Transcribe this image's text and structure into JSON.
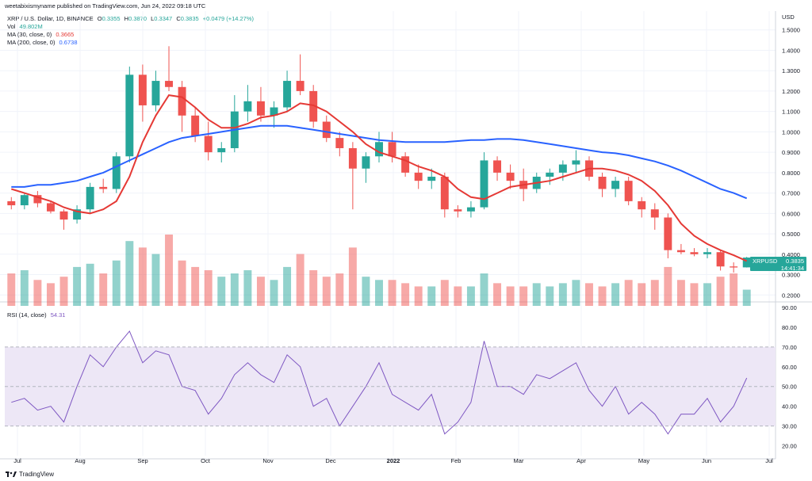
{
  "header": {
    "publisher": "weetabixismyname published on TradingView.com, Jun 24, 2022 09:18 UTC"
  },
  "legend": {
    "symbol": "XRP / U.S. Dollar, 1D, BINANCE",
    "ohlc": {
      "o_label": "O",
      "o": "0.3355",
      "h_label": "H",
      "h": "0.3870",
      "l_label": "L",
      "l": "0.3347",
      "c_label": "C",
      "c": "0.3835",
      "change": "+0.0479 (+14.27%)"
    },
    "vol_label": "Vol",
    "vol_value": "49.802M",
    "ma30_label": "MA (30, close, 0)",
    "ma30_value": "0.3665",
    "ma200_label": "MA (200, close, 0)",
    "ma200_value": "0.6738",
    "rsi_label": "RSI (14, close)",
    "rsi_value": "54.31"
  },
  "price_badge": {
    "symbol": "XRPUSD",
    "value": "0.3835",
    "countdown": "14:41:34"
  },
  "branding": {
    "name": "TradingView"
  },
  "colors": {
    "up": "#26a69a",
    "down": "#ef5350",
    "ma30": "#e53935",
    "ma200": "#2962ff",
    "rsi_line": "#7e57c2",
    "rsi_band": "#ede7f6",
    "background": "#ffffff",
    "grid": "#f0f3fa"
  },
  "chart_data": {
    "type": "candlestick",
    "currency_label": "USD",
    "x_axis": {
      "labels": [
        "Jul",
        "Aug",
        "Sep",
        "Oct",
        "Nov",
        "Dec",
        "2022",
        "Feb",
        "Mar",
        "Apr",
        "May",
        "Jun",
        "Jul"
      ]
    },
    "y_axis": {
      "ticks": [
        "1.5000",
        "1.4000",
        "1.3000",
        "1.2000",
        "1.1000",
        "1.0000",
        "0.9000",
        "0.8000",
        "0.7000",
        "0.6000",
        "0.5000",
        "0.4000",
        "0.3000",
        "0.2000"
      ],
      "range": [
        0.17,
        1.53
      ]
    },
    "rsi_axis": {
      "ticks": [
        "90.00",
        "80.00",
        "70.00",
        "60.00",
        "50.00",
        "40.00",
        "30.00",
        "20.00"
      ],
      "range": [
        15,
        92
      ],
      "bands": [
        30,
        70
      ],
      "midline": 50
    },
    "ohlc_approx_weekly": [
      [
        0.66,
        0.68,
        0.62,
        0.64
      ],
      [
        0.64,
        0.7,
        0.62,
        0.69
      ],
      [
        0.69,
        0.71,
        0.63,
        0.65
      ],
      [
        0.65,
        0.66,
        0.6,
        0.61
      ],
      [
        0.61,
        0.62,
        0.52,
        0.57
      ],
      [
        0.57,
        0.64,
        0.55,
        0.62
      ],
      [
        0.62,
        0.75,
        0.6,
        0.73
      ],
      [
        0.73,
        0.77,
        0.7,
        0.72
      ],
      [
        0.72,
        0.9,
        0.7,
        0.88
      ],
      [
        0.88,
        1.32,
        0.85,
        1.28
      ],
      [
        1.28,
        1.33,
        1.05,
        1.13
      ],
      [
        1.13,
        1.3,
        1.1,
        1.25
      ],
      [
        1.25,
        1.42,
        1.2,
        1.22
      ],
      [
        1.22,
        1.25,
        1.0,
        1.08
      ],
      [
        1.08,
        1.12,
        0.95,
        0.98
      ],
      [
        0.98,
        1.05,
        0.86,
        0.9
      ],
      [
        0.9,
        0.95,
        0.85,
        0.92
      ],
      [
        0.92,
        1.18,
        0.9,
        1.1
      ],
      [
        1.1,
        1.23,
        1.05,
        1.15
      ],
      [
        1.15,
        1.22,
        1.05,
        1.08
      ],
      [
        1.08,
        1.15,
        1.02,
        1.12
      ],
      [
        1.12,
        1.3,
        1.1,
        1.25
      ],
      [
        1.25,
        1.38,
        1.18,
        1.2
      ],
      [
        1.2,
        1.23,
        1.02,
        1.05
      ],
      [
        1.05,
        1.08,
        0.95,
        0.97
      ],
      [
        0.97,
        1.0,
        0.88,
        0.92
      ],
      [
        0.92,
        0.95,
        0.62,
        0.82
      ],
      [
        0.82,
        0.9,
        0.75,
        0.88
      ],
      [
        0.88,
        1.0,
        0.85,
        0.95
      ],
      [
        0.95,
        1.0,
        0.85,
        0.88
      ],
      [
        0.88,
        0.9,
        0.78,
        0.8
      ],
      [
        0.8,
        0.84,
        0.72,
        0.76
      ],
      [
        0.76,
        0.82,
        0.72,
        0.78
      ],
      [
        0.78,
        0.8,
        0.58,
        0.62
      ],
      [
        0.62,
        0.64,
        0.58,
        0.61
      ],
      [
        0.61,
        0.66,
        0.58,
        0.63
      ],
      [
        0.63,
        0.9,
        0.62,
        0.86
      ],
      [
        0.86,
        0.88,
        0.76,
        0.8
      ],
      [
        0.8,
        0.84,
        0.72,
        0.76
      ],
      [
        0.76,
        0.82,
        0.66,
        0.72
      ],
      [
        0.72,
        0.8,
        0.7,
        0.78
      ],
      [
        0.78,
        0.82,
        0.74,
        0.8
      ],
      [
        0.8,
        0.86,
        0.76,
        0.84
      ],
      [
        0.84,
        0.91,
        0.8,
        0.86
      ],
      [
        0.86,
        0.88,
        0.76,
        0.78
      ],
      [
        0.78,
        0.8,
        0.68,
        0.72
      ],
      [
        0.72,
        0.78,
        0.68,
        0.76
      ],
      [
        0.76,
        0.78,
        0.64,
        0.66
      ],
      [
        0.66,
        0.68,
        0.58,
        0.62
      ],
      [
        0.62,
        0.65,
        0.52,
        0.58
      ],
      [
        0.58,
        0.6,
        0.38,
        0.42
      ],
      [
        0.42,
        0.45,
        0.4,
        0.41
      ],
      [
        0.41,
        0.43,
        0.39,
        0.4
      ],
      [
        0.4,
        0.43,
        0.38,
        0.41
      ],
      [
        0.41,
        0.42,
        0.32,
        0.34
      ],
      [
        0.34,
        0.36,
        0.31,
        0.335
      ],
      [
        0.3355,
        0.387,
        0.3347,
        0.3835
      ]
    ],
    "ma30_approx": [
      0.72,
      0.7,
      0.68,
      0.66,
      0.63,
      0.61,
      0.6,
      0.62,
      0.66,
      0.78,
      0.95,
      1.08,
      1.18,
      1.17,
      1.12,
      1.06,
      1.02,
      1.02,
      1.04,
      1.07,
      1.08,
      1.1,
      1.14,
      1.13,
      1.1,
      1.05,
      1.0,
      0.94,
      0.9,
      0.88,
      0.86,
      0.83,
      0.81,
      0.78,
      0.72,
      0.68,
      0.67,
      0.7,
      0.73,
      0.74,
      0.75,
      0.76,
      0.78,
      0.8,
      0.82,
      0.82,
      0.81,
      0.79,
      0.76,
      0.71,
      0.64,
      0.55,
      0.49,
      0.45,
      0.42,
      0.395,
      0.3665
    ],
    "ma200_approx": [
      0.73,
      0.73,
      0.74,
      0.74,
      0.75,
      0.76,
      0.78,
      0.8,
      0.83,
      0.86,
      0.89,
      0.92,
      0.95,
      0.97,
      0.98,
      0.99,
      1.0,
      1.01,
      1.02,
      1.03,
      1.03,
      1.03,
      1.02,
      1.01,
      1.0,
      0.99,
      0.98,
      0.97,
      0.96,
      0.955,
      0.95,
      0.95,
      0.95,
      0.95,
      0.955,
      0.96,
      0.96,
      0.965,
      0.965,
      0.96,
      0.95,
      0.94,
      0.93,
      0.92,
      0.91,
      0.9,
      0.895,
      0.885,
      0.87,
      0.855,
      0.835,
      0.81,
      0.78,
      0.75,
      0.72,
      0.7,
      0.6738
    ],
    "rsi_approx": [
      42,
      44,
      38,
      40,
      32,
      50,
      66,
      60,
      70,
      78,
      62,
      68,
      66,
      50,
      48,
      36,
      44,
      56,
      62,
      56,
      52,
      66,
      60,
      40,
      44,
      30,
      40,
      50,
      62,
      46,
      42,
      38,
      46,
      26,
      32,
      42,
      73,
      50,
      50,
      46,
      56,
      54,
      58,
      62,
      48,
      40,
      50,
      36,
      42,
      36,
      26,
      36,
      36,
      44,
      32,
      40,
      54.31
    ],
    "volume_approx": [
      0.1,
      0.11,
      0.08,
      0.07,
      0.09,
      0.12,
      0.13,
      0.1,
      0.14,
      0.2,
      0.18,
      0.16,
      0.22,
      0.14,
      0.12,
      0.11,
      0.09,
      0.1,
      0.11,
      0.09,
      0.08,
      0.12,
      0.16,
      0.11,
      0.09,
      0.1,
      0.18,
      0.09,
      0.08,
      0.08,
      0.07,
      0.06,
      0.06,
      0.08,
      0.06,
      0.06,
      0.1,
      0.07,
      0.06,
      0.06,
      0.07,
      0.06,
      0.07,
      0.08,
      0.07,
      0.06,
      0.07,
      0.08,
      0.07,
      0.08,
      0.12,
      0.08,
      0.07,
      0.07,
      0.09,
      0.1,
      0.05
    ]
  }
}
